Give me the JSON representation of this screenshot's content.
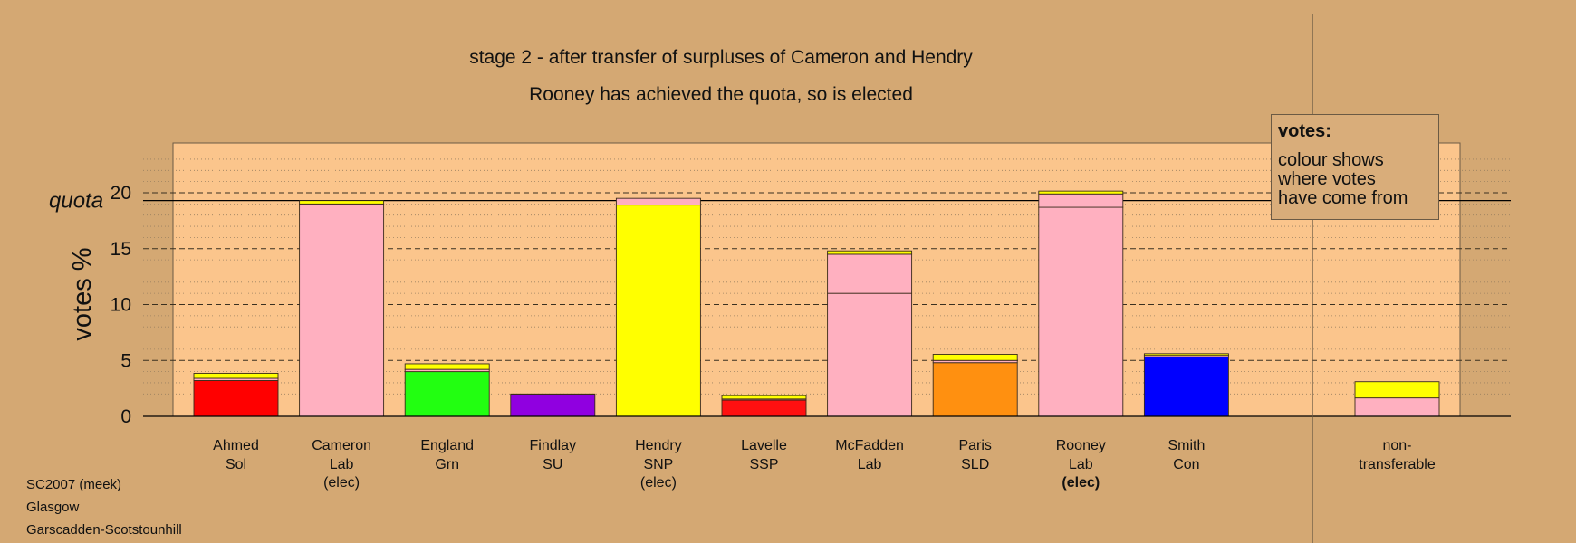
{
  "chart_data": {
    "type": "bar",
    "stacked": true,
    "title": "stage 2 - after transfer of surpluses of Cameron and Hendry",
    "subtitle": "Rooney has achieved the quota, so is elected",
    "ylabel": "votes %",
    "ylim": [
      0,
      24.5
    ],
    "yticks": [
      0,
      5,
      10,
      15,
      20
    ],
    "quota_label": "quota",
    "quota_value": 19.3,
    "grid": true,
    "legend": {
      "title": "votes:",
      "lines": [
        "colour shows",
        "where votes",
        "have come from"
      ],
      "placement": "top-right"
    },
    "colors": {
      "Sol": "#ff0000",
      "Lab": "#ffb0c0",
      "Grn": "#22ff11",
      "SU": "#9000e0",
      "SNP": "#ffff00",
      "SSP": "#ff1010",
      "SLD": "#ff9010",
      "Con": "#0000ff"
    },
    "candidates": [
      {
        "name": "Ahmed",
        "party": "Sol",
        "note": "",
        "note_bold": false,
        "segments": [
          {
            "from": "Sol",
            "value": 3.2
          },
          {
            "from": "Lab",
            "value": 0.2
          },
          {
            "from": "SNP",
            "value": 0.45
          }
        ]
      },
      {
        "name": "Cameron",
        "party": "Lab",
        "note": "(elec)",
        "note_bold": false,
        "segments": [
          {
            "from": "Lab",
            "value": 19.0
          },
          {
            "from": "SNP",
            "value": 0.3
          }
        ]
      },
      {
        "name": "England",
        "party": "Grn",
        "note": "",
        "note_bold": false,
        "segments": [
          {
            "from": "Grn",
            "value": 4.0
          },
          {
            "from": "Lab",
            "value": 0.2
          },
          {
            "from": "SNP",
            "value": 0.5
          }
        ]
      },
      {
        "name": "Findlay",
        "party": "SU",
        "note": "",
        "note_bold": false,
        "segments": [
          {
            "from": "SU",
            "value": 1.9
          },
          {
            "from": "Lab",
            "value": 0.05
          },
          {
            "from": "SNP",
            "value": 0.05
          }
        ]
      },
      {
        "name": "Hendry",
        "party": "SNP",
        "note": "(elec)",
        "note_bold": false,
        "segments": [
          {
            "from": "SNP",
            "value": 18.9
          },
          {
            "from": "Lab",
            "value": 0.6
          }
        ]
      },
      {
        "name": "Lavelle",
        "party": "SSP",
        "note": "",
        "note_bold": false,
        "segments": [
          {
            "from": "SSP",
            "value": 1.45
          },
          {
            "from": "Lab",
            "value": 0.1
          },
          {
            "from": "SNP",
            "value": 0.3
          }
        ]
      },
      {
        "name": "McFadden",
        "party": "Lab",
        "note": "",
        "note_bold": false,
        "segments": [
          {
            "from": "Lab",
            "value": 11.0
          },
          {
            "from": "Lab",
            "value": 3.5
          },
          {
            "from": "SNP",
            "value": 0.3
          }
        ]
      },
      {
        "name": "Paris",
        "party": "SLD",
        "note": "",
        "note_bold": false,
        "segments": [
          {
            "from": "SLD",
            "value": 4.8
          },
          {
            "from": "Lab",
            "value": 0.2
          },
          {
            "from": "SNP",
            "value": 0.55
          }
        ]
      },
      {
        "name": "Rooney",
        "party": "Lab",
        "note": "(elec)",
        "note_bold": true,
        "segments": [
          {
            "from": "Lab",
            "value": 18.7
          },
          {
            "from": "Lab",
            "value": 1.2
          },
          {
            "from": "SNP",
            "value": 0.25
          }
        ]
      },
      {
        "name": "Smith",
        "party": "Con",
        "note": "",
        "note_bold": false,
        "segments": [
          {
            "from": "Con",
            "value": 5.3
          },
          {
            "from": "Lab",
            "value": 0.15
          },
          {
            "from": "SNP",
            "value": 0.15
          }
        ]
      }
    ],
    "non_transferable": {
      "label_line1": "non-",
      "label_line2": "transferable",
      "segments": [
        {
          "from": "Lab",
          "value": 1.65
        },
        {
          "from": "SNP",
          "value": 1.45
        }
      ]
    }
  },
  "footer": {
    "line1": "SC2007 (meek)",
    "line2": "Glasgow",
    "line3": "Garscadden-Scotstounhill"
  }
}
